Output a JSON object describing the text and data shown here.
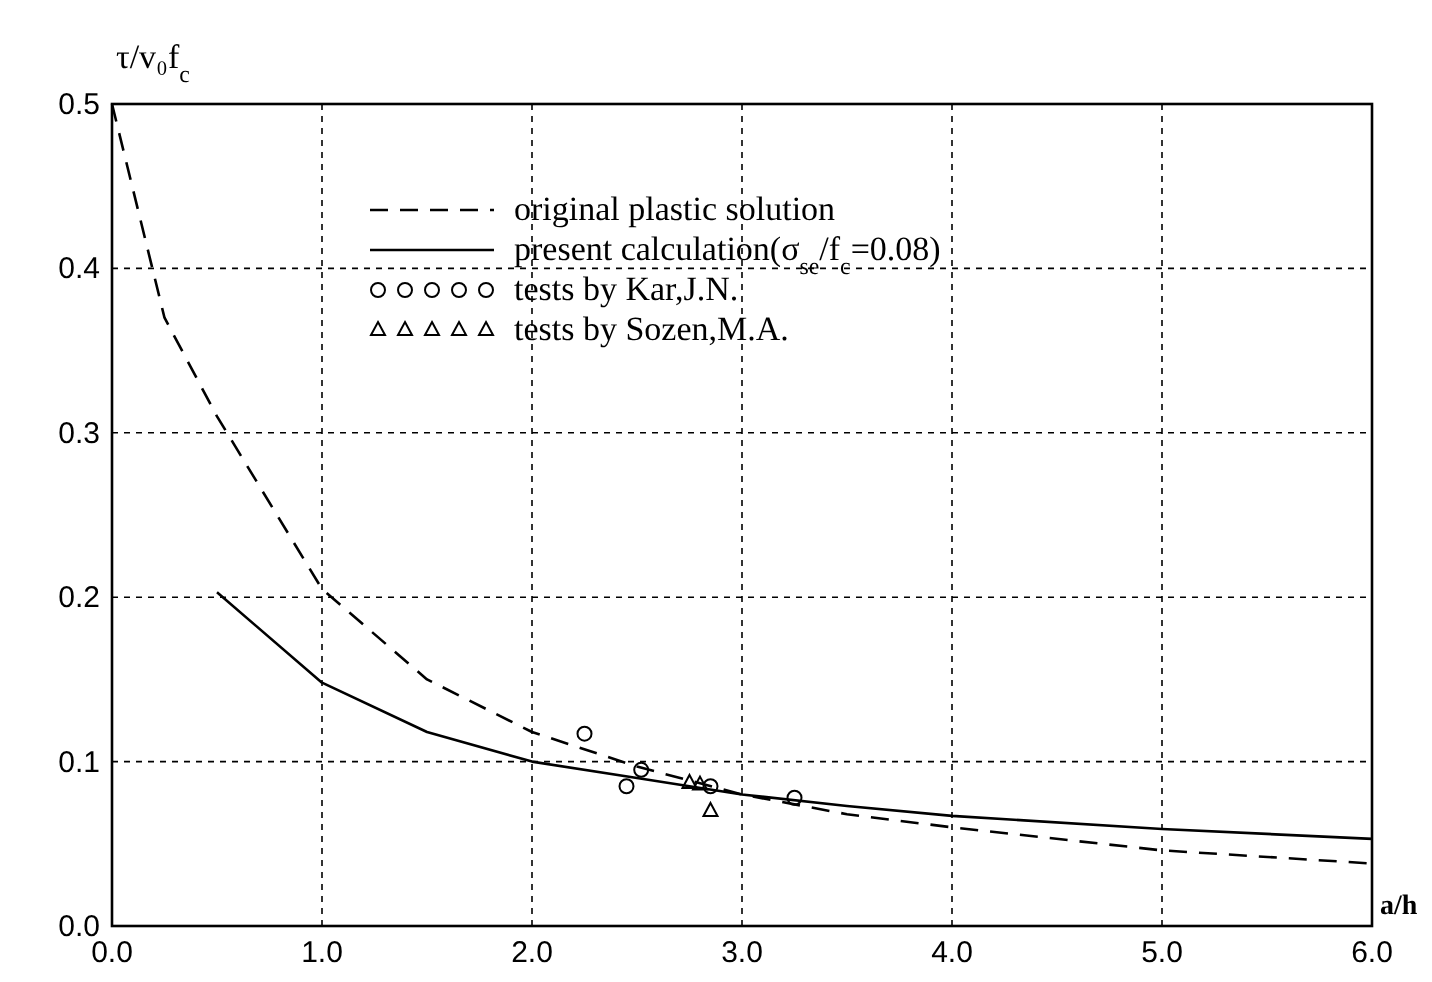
{
  "chart_data": {
    "type": "line",
    "xlabel": "a/h",
    "ylabel": "τ/v₀f$_{c}$",
    "xlim": [
      0,
      6
    ],
    "ylim": [
      0,
      0.5
    ],
    "xticks": [
      {
        "value": 0,
        "label": "0.0"
      },
      {
        "value": 1,
        "label": "1.0"
      },
      {
        "value": 2,
        "label": "2.0"
      },
      {
        "value": 3,
        "label": "3.0"
      },
      {
        "value": 4,
        "label": "4.0"
      },
      {
        "value": 5,
        "label": "5.0"
      },
      {
        "value": 6,
        "label": "6.0"
      }
    ],
    "yticks": [
      {
        "value": 0,
        "label": "0.0"
      },
      0.1,
      0.2,
      0.3,
      0.4,
      0.5
    ],
    "grid": true,
    "legend": "top",
    "series": [
      {
        "name": "original plastic solution",
        "color": "#000000",
        "line_style": "dashed",
        "marker": "none",
        "x": [
          0,
          0.25,
          0.5,
          1.0,
          1.5,
          2.0,
          2.5,
          3.0,
          3.5,
          4.0,
          5.0,
          6.0
        ],
        "values": [
          0.5,
          0.37,
          0.31,
          0.205,
          0.15,
          0.118,
          0.097,
          0.08,
          0.068,
          0.06,
          0.046,
          0.038
        ]
      },
      {
        "name": "present calculation(σ$_{se}$/f$_{c}$=0.08)",
        "color": "#000000",
        "line_style": "solid",
        "marker": "none",
        "x": [
          0.5,
          1.0,
          1.5,
          2.0,
          2.5,
          3.0,
          3.5,
          4.0,
          5.0,
          6.0
        ],
        "values": [
          0.203,
          0.148,
          0.118,
          0.1,
          0.09,
          0.08,
          0.073,
          0.067,
          0.059,
          0.053
        ]
      },
      {
        "name": "tests by Kar,J.N.",
        "type": "scatter",
        "color": "#000000",
        "marker": "circle",
        "x": [
          2.25,
          2.45,
          2.52,
          2.85,
          3.25
        ],
        "values": [
          0.117,
          0.085,
          0.095,
          0.085,
          0.078
        ]
      },
      {
        "name": "tests by Sozen,M.A.",
        "type": "scatter",
        "color": "#000000",
        "marker": "triangle",
        "x": [
          2.75,
          2.8,
          2.85
        ],
        "values": [
          0.087,
          0.086,
          0.07
        ]
      }
    ]
  }
}
